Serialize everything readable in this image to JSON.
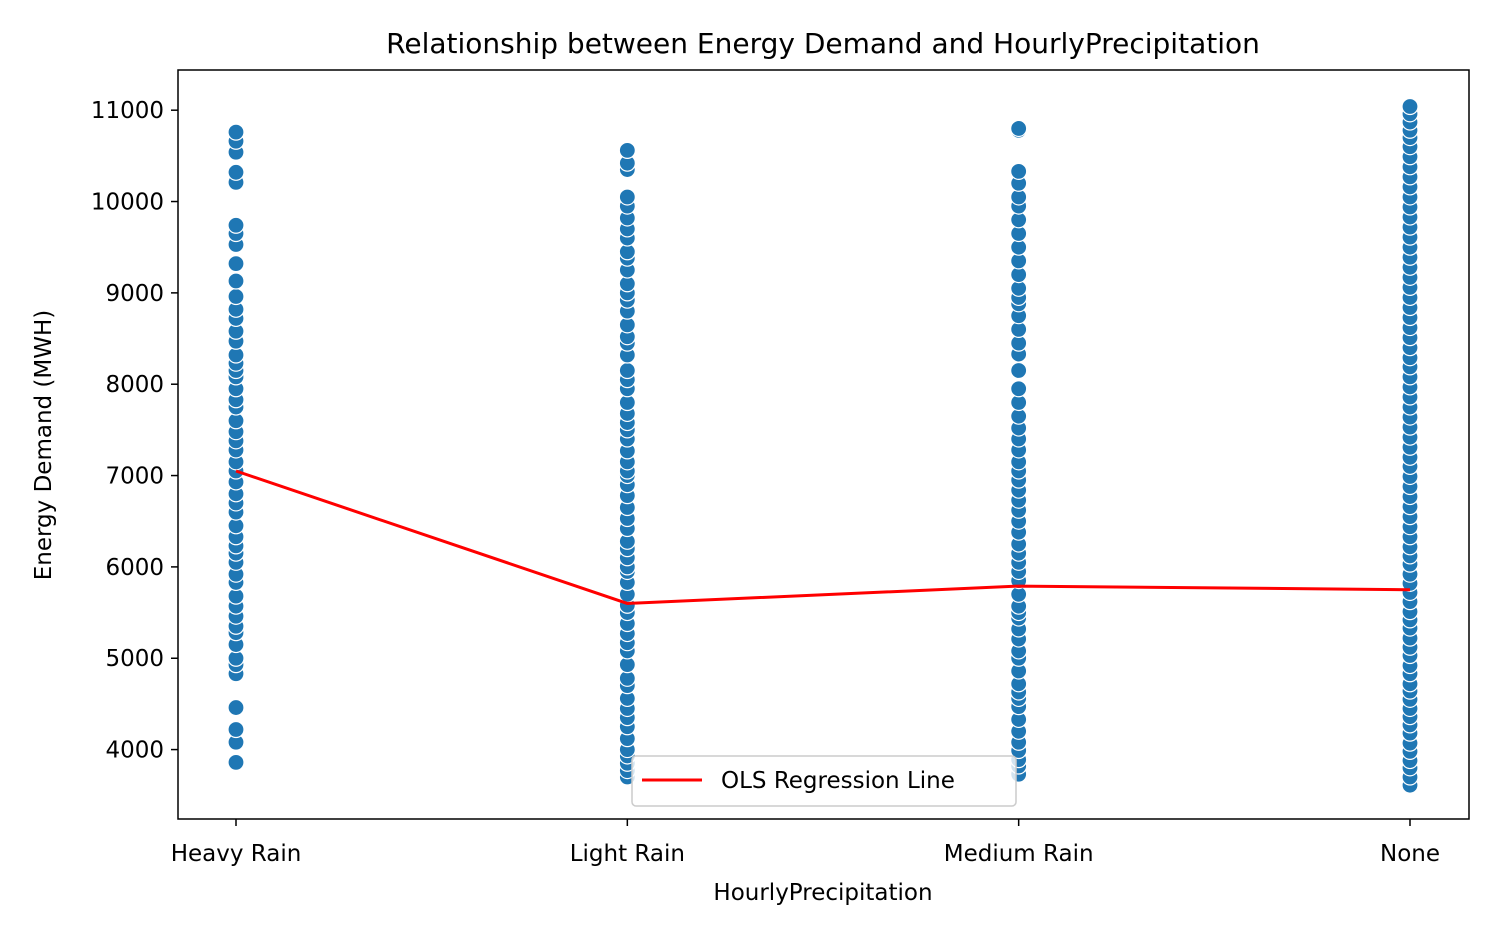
{
  "chart_data": {
    "type": "scatter",
    "title": "Relationship between Energy Demand and HourlyPrecipitation",
    "xlabel": "HourlyPrecipitation",
    "ylabel": "Energy Demand (MWH)",
    "categories": [
      "Heavy Rain",
      "Light Rain",
      "Medium Rain",
      "None"
    ],
    "ylim": [
      3240,
      11440
    ],
    "yticks": [
      4000,
      5000,
      6000,
      7000,
      8000,
      9000,
      10000,
      11000
    ],
    "grid": false,
    "legend_position": "bottom-center",
    "point_color": "#1f77b4",
    "line_color": "#ff0000",
    "series": [
      {
        "kind": "scatter",
        "points": [
          {
            "category": "Heavy Rain",
            "values": [
              3860,
              4080,
              4220,
              4460,
              4830,
              4930,
              5000,
              5150,
              5280,
              5350,
              5460,
              5570,
              5680,
              5830,
              5920,
              6050,
              6150,
              6230,
              6330,
              6450,
              6600,
              6700,
              6800,
              6930,
              7050,
              7150,
              7280,
              7380,
              7480,
              7600,
              7750,
              7830,
              7950,
              8080,
              8150,
              8230,
              8320,
              8470,
              8580,
              8720,
              8820,
              8960,
              9130,
              9320,
              9530,
              9650,
              9740,
              10210,
              10320,
              10540,
              10660,
              10760
            ]
          },
          {
            "category": "Light Rain",
            "values": [
              3700,
              3770,
              3850,
              3930,
              4000,
              4120,
              4250,
              4350,
              4450,
              4560,
              4700,
              4780,
              4930,
              5080,
              5170,
              5270,
              5380,
              5500,
              5580,
              5700,
              5830,
              5950,
              6000,
              6100,
              6200,
              6280,
              6420,
              6530,
              6650,
              6780,
              6900,
              7000,
              7050,
              7150,
              7270,
              7400,
              7500,
              7580,
              7680,
              7800,
              7950,
              8050,
              8150,
              8320,
              8450,
              8520,
              8650,
              8800,
              8920,
              9000,
              9100,
              9250,
              9380,
              9450,
              9600,
              9700,
              9820,
              9950,
              10050,
              10350,
              10420,
              10560
            ]
          },
          {
            "category": "Medium Rain",
            "values": [
              3730,
              3820,
              3890,
              3990,
              4080,
              4200,
              4330,
              4470,
              4560,
              4630,
              4720,
              4860,
              5000,
              5080,
              5210,
              5320,
              5440,
              5500,
              5570,
              5700,
              5850,
              5950,
              6050,
              6150,
              6250,
              6380,
              6500,
              6620,
              6730,
              6840,
              6950,
              7050,
              7150,
              7280,
              7400,
              7520,
              7650,
              7800,
              7950,
              8150,
              8330,
              8450,
              8600,
              8750,
              8880,
              8950,
              9050,
              9200,
              9350,
              9500,
              9650,
              9800,
              9950,
              10050,
              10200,
              10330,
              10780,
              10800
            ]
          },
          {
            "category": "None",
            "values": [
              3610,
              3700,
              3800,
              3880,
              3980,
              4070,
              4180,
              4270,
              4360,
              4450,
              4550,
              4640,
              4720,
              4830,
              4920,
              5030,
              5120,
              5220,
              5330,
              5420,
              5510,
              5620,
              5720,
              5820,
              5920,
              6030,
              6120,
              6220,
              6330,
              6440,
              6550,
              6660,
              6770,
              6880,
              6990,
              7100,
              7200,
              7310,
              7420,
              7530,
              7640,
              7750,
              7860,
              7970,
              8080,
              8190,
              8290,
              8400,
              8510,
              8620,
              8730,
              8840,
              8950,
              9060,
              9170,
              9280,
              9390,
              9500,
              9610,
              9720,
              9830,
              9940,
              10050,
              10160,
              10270,
              10380,
              10490,
              10600,
              10700,
              10780,
              10870,
              10960,
              11040
            ]
          }
        ]
      },
      {
        "kind": "line",
        "name": "OLS Regression Line",
        "values": [
          7050,
          5600,
          5790,
          5750
        ]
      }
    ]
  }
}
